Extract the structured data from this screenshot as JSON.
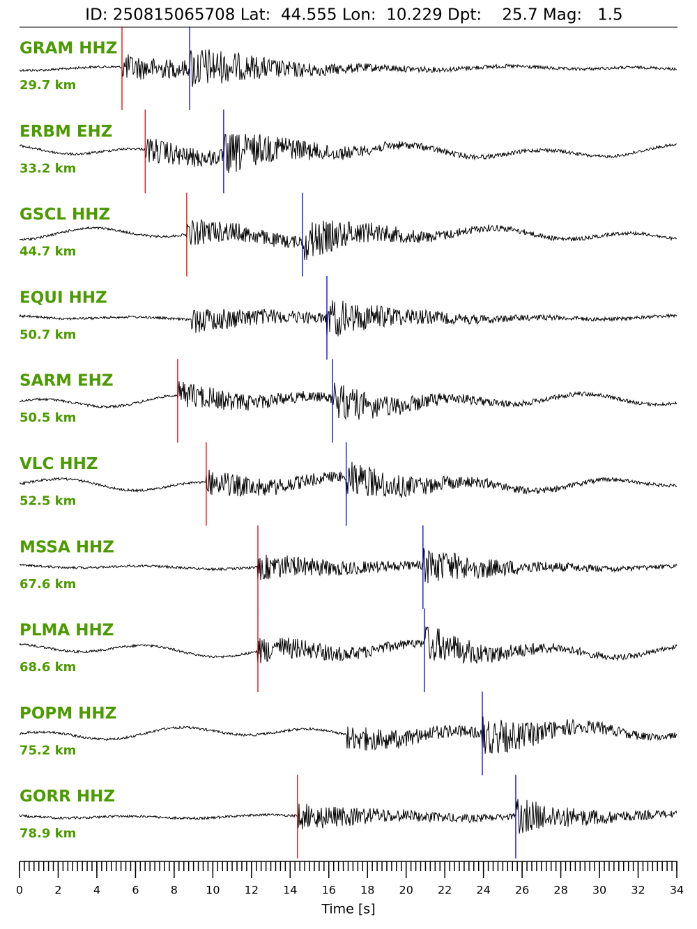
{
  "chart_data": {
    "type": "seismogram",
    "title": "ID: 250815065708 Lat:  44.555 Lon:  10.229 Dpt:    25.7 Mag:   1.5",
    "xlabel": "Time [s]",
    "xlim": [
      0,
      34
    ],
    "xticks": [
      0,
      2,
      4,
      6,
      8,
      10,
      12,
      14,
      16,
      18,
      20,
      22,
      24,
      26,
      28,
      30,
      32,
      34
    ],
    "xminor": 0.25,
    "label_color": "#4c9a00",
    "p_color": "#e00000",
    "s_color": "#0000d0",
    "traces": [
      {
        "station": "GRAM HHZ",
        "distance": "29.7 km",
        "p": 5.3,
        "s": 8.8
      },
      {
        "station": "ERBM EHZ",
        "distance": "33.2 km",
        "p": 6.5,
        "s": 10.56
      },
      {
        "station": "GSCL HHZ",
        "distance": "44.7 km",
        "p": 8.65,
        "s": 14.64
      },
      {
        "station": "EQUI HHZ",
        "distance": "50.7 km",
        "p": null,
        "s": 15.9
      },
      {
        "station": "SARM EHZ",
        "distance": "50.5 km",
        "p": 8.18,
        "s": 16.19
      },
      {
        "station": "VLC HHZ",
        "distance": "52.5 km",
        "p": 9.66,
        "s": 16.9
      },
      {
        "station": "MSSA HHZ",
        "distance": "67.6 km",
        "p": 12.33,
        "s": 20.87
      },
      {
        "station": "PLMA HHZ",
        "distance": "68.6 km",
        "p": 12.33,
        "s": 20.94
      },
      {
        "station": "POPM HHZ",
        "distance": "75.2 km",
        "p": null,
        "s": 23.94
      },
      {
        "station": "GORR HHZ",
        "distance": "78.9 km",
        "p": 14.38,
        "s": 25.67
      }
    ]
  }
}
